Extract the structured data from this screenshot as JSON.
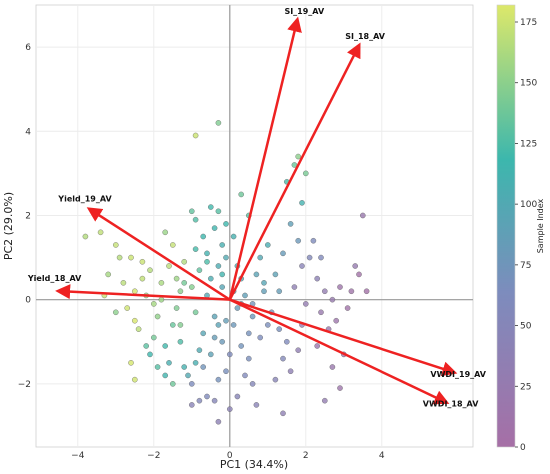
{
  "chart_data": {
    "type": "scatter",
    "title": "",
    "xlabel": "PC1 (34.4%)",
    "ylabel": "PC2 (29.0%)",
    "xlim": [
      -5.1,
      6.4
    ],
    "ylim": [
      -3.5,
      7.0
    ],
    "xticks": [
      -4,
      -2,
      0,
      2,
      4
    ],
    "yticks": [
      -2,
      0,
      2,
      4,
      6
    ],
    "grid": true,
    "colorbar": {
      "label": "Sample Index",
      "range": [
        0,
        182
      ],
      "ticks": [
        0,
        25,
        50,
        75,
        100,
        125,
        150,
        175
      ],
      "colors": [
        "#a66fa6",
        "#7d8cbd",
        "#3cb7ad",
        "#dde86a"
      ]
    },
    "loadings": {
      "color": "#ee2222",
      "vectors": [
        {
          "name": "SI_19_AV",
          "x": 1.75,
          "y": 6.55
        },
        {
          "name": "SI_18_AV",
          "x": 3.35,
          "y": 5.95
        },
        {
          "name": "Yield_19_AV",
          "x": -3.6,
          "y": 2.1
        },
        {
          "name": "Yield_18_AV",
          "x": -4.4,
          "y": 0.2
        },
        {
          "name": "VWDI_19_AV",
          "x": 5.8,
          "y": -1.7
        },
        {
          "name": "VWDI_18_AV",
          "x": 5.6,
          "y": -2.4
        }
      ]
    },
    "points": [
      [
        -3.8,
        1.5,
        165
      ],
      [
        -3.4,
        1.6,
        170
      ],
      [
        -3.0,
        1.3,
        172
      ],
      [
        -2.8,
        0.4,
        168
      ],
      [
        -3.2,
        0.6,
        160
      ],
      [
        -2.6,
        1.0,
        175
      ],
      [
        -2.5,
        0.2,
        178
      ],
      [
        -2.3,
        0.5,
        171
      ],
      [
        -2.1,
        0.7,
        166
      ],
      [
        -2.2,
        0.1,
        158
      ],
      [
        -2.7,
        -0.2,
        176
      ],
      [
        -2.5,
        -0.5,
        180
      ],
      [
        -2.6,
        -1.5,
        179
      ],
      [
        -2.5,
        -1.9,
        177
      ],
      [
        -3.0,
        -0.3,
        150
      ],
      [
        -2.0,
        -0.1,
        160
      ],
      [
        -1.8,
        0.4,
        162
      ],
      [
        -1.6,
        0.8,
        168
      ],
      [
        -1.5,
        1.3,
        172
      ],
      [
        -1.7,
        1.6,
        155
      ],
      [
        -1.4,
        0.5,
        157
      ],
      [
        -1.3,
        0.2,
        150
      ],
      [
        -1.2,
        0.9,
        164
      ],
      [
        -1.9,
        -0.4,
        152
      ],
      [
        -2.0,
        -0.9,
        140
      ],
      [
        -2.2,
        -1.1,
        130
      ],
      [
        -2.1,
        -1.3,
        118
      ],
      [
        -1.6,
        -1.5,
        108
      ],
      [
        -1.7,
        -1.1,
        120
      ],
      [
        -1.5,
        -0.6,
        135
      ],
      [
        -1.4,
        -0.2,
        145
      ],
      [
        -1.3,
        -1.0,
        125
      ],
      [
        -1.2,
        -1.6,
        110
      ],
      [
        -1.1,
        -1.8,
        100
      ],
      [
        -1.7,
        -1.8,
        115
      ],
      [
        -1.5,
        -2.0,
        138
      ],
      [
        -1.9,
        -1.6,
        128
      ],
      [
        -0.9,
        -0.3,
        140
      ],
      [
        -1.0,
        0.3,
        147
      ],
      [
        -0.8,
        0.7,
        132
      ],
      [
        -0.9,
        1.2,
        122
      ],
      [
        -0.7,
        1.5,
        118
      ],
      [
        -0.9,
        1.9,
        126
      ],
      [
        -1.0,
        2.1,
        133
      ],
      [
        -0.6,
        1.1,
        112
      ],
      [
        -0.5,
        0.5,
        105
      ],
      [
        -0.6,
        0.1,
        98
      ],
      [
        -0.4,
        -0.4,
        92
      ],
      [
        -0.7,
        -0.8,
        96
      ],
      [
        -0.8,
        -1.2,
        102
      ],
      [
        -0.9,
        -1.5,
        108
      ],
      [
        -0.5,
        -1.3,
        90
      ],
      [
        -0.6,
        -2.3,
        60
      ],
      [
        -0.8,
        -2.4,
        55
      ],
      [
        -0.4,
        -2.4,
        50
      ],
      [
        -0.3,
        -2.9,
        40
      ],
      [
        -1.0,
        -2.5,
        45
      ],
      [
        -0.3,
        -1.9,
        70
      ],
      [
        -0.2,
        -1.0,
        80
      ],
      [
        -0.1,
        -0.5,
        85
      ],
      [
        -0.2,
        0.3,
        95
      ],
      [
        -0.3,
        0.8,
        103
      ],
      [
        -0.5,
        2.2,
        120
      ],
      [
        -0.3,
        2.1,
        128
      ],
      [
        -0.4,
        1.7,
        116
      ],
      [
        -0.2,
        1.3,
        108
      ],
      [
        -0.9,
        3.9,
        175
      ],
      [
        -0.3,
        4.2,
        145
      ],
      [
        -0.1,
        1.0,
        100
      ],
      [
        0.1,
        1.5,
        110
      ],
      [
        0.2,
        0.8,
        104
      ],
      [
        0.3,
        0.5,
        97
      ],
      [
        0.4,
        0.1,
        88
      ],
      [
        0.2,
        -0.2,
        82
      ],
      [
        0.1,
        -0.6,
        78
      ],
      [
        0.3,
        -1.1,
        72
      ],
      [
        0.5,
        -1.4,
        66
      ],
      [
        0.4,
        -1.8,
        58
      ],
      [
        0.6,
        -2.0,
        52
      ],
      [
        0.2,
        -2.3,
        48
      ],
      [
        0.0,
        -2.6,
        42
      ],
      [
        0.6,
        -0.4,
        76
      ],
      [
        0.5,
        -0.8,
        70
      ],
      [
        0.8,
        -0.9,
        64
      ],
      [
        0.9,
        0.2,
        86
      ],
      [
        0.7,
        0.6,
        92
      ],
      [
        0.8,
        1.0,
        98
      ],
      [
        1.0,
        1.3,
        106
      ],
      [
        1.2,
        0.6,
        90
      ],
      [
        1.3,
        0.2,
        84
      ],
      [
        1.1,
        -0.3,
        74
      ],
      [
        1.3,
        -0.7,
        68
      ],
      [
        1.5,
        -1.0,
        60
      ],
      [
        1.4,
        -1.4,
        54
      ],
      [
        1.2,
        -1.9,
        46
      ],
      [
        1.6,
        -1.7,
        38
      ],
      [
        1.8,
        -1.2,
        34
      ],
      [
        1.9,
        -0.6,
        30
      ],
      [
        2.0,
        -0.1,
        28
      ],
      [
        1.7,
        0.3,
        36
      ],
      [
        1.9,
        0.8,
        44
      ],
      [
        2.1,
        1.0,
        56
      ],
      [
        2.2,
        1.4,
        62
      ],
      [
        1.8,
        1.4,
        78
      ],
      [
        1.6,
        1.8,
        88
      ],
      [
        1.9,
        2.3,
        112
      ],
      [
        1.5,
        2.8,
        124
      ],
      [
        1.7,
        3.2,
        136
      ],
      [
        2.0,
        3.0,
        142
      ],
      [
        1.8,
        3.4,
        150
      ],
      [
        2.3,
        0.5,
        40
      ],
      [
        2.5,
        0.2,
        30
      ],
      [
        2.7,
        0.0,
        24
      ],
      [
        2.4,
        -0.3,
        22
      ],
      [
        2.6,
        -0.7,
        18
      ],
      [
        2.3,
        -1.1,
        16
      ],
      [
        2.8,
        -0.5,
        14
      ],
      [
        2.9,
        0.3,
        12
      ],
      [
        3.2,
        0.2,
        10
      ],
      [
        3.1,
        -0.2,
        8
      ],
      [
        3.4,
        0.6,
        6
      ],
      [
        3.6,
        0.2,
        4
      ],
      [
        3.5,
        2.0,
        20
      ],
      [
        3.3,
        0.8,
        26
      ],
      [
        3.0,
        -1.3,
        12
      ],
      [
        2.7,
        -1.6,
        20
      ],
      [
        2.9,
        -2.1,
        14
      ],
      [
        2.5,
        -2.4,
        30
      ],
      [
        1.4,
        -2.7,
        36
      ],
      [
        -1.0,
        -2.0,
        64
      ],
      [
        -0.7,
        -1.6,
        74
      ],
      [
        -0.4,
        -0.9,
        84
      ],
      [
        0.0,
        -1.3,
        62
      ],
      [
        0.1,
        0.2,
        90
      ],
      [
        -0.2,
        0.6,
        114
      ],
      [
        -1.2,
        0.4,
        140
      ],
      [
        -2.9,
        1.0,
        166
      ],
      [
        -3.3,
        0.1,
        174
      ],
      [
        -2.4,
        -0.7,
        169
      ],
      [
        -0.6,
        0.9,
        124
      ],
      [
        0.5,
        2.0,
        130
      ],
      [
        0.3,
        2.5,
        138
      ],
      [
        0.9,
        0.4,
        96
      ],
      [
        1.4,
        1.1,
        82
      ],
      [
        2.4,
        1.0,
        58
      ],
      [
        0.7,
        -2.5,
        44
      ],
      [
        -0.1,
        -1.7,
        68
      ],
      [
        -1.3,
        -0.6,
        146
      ],
      [
        -2.3,
        0.9,
        174
      ],
      [
        -1.8,
        0.0,
        156
      ],
      [
        0.3,
        -0.1,
        80
      ],
      [
        0.6,
        -0.1,
        72
      ],
      [
        1.0,
        -0.6,
        66
      ],
      [
        -0.3,
        -0.6,
        92
      ],
      [
        -0.1,
        1.8,
        118
      ]
    ]
  }
}
